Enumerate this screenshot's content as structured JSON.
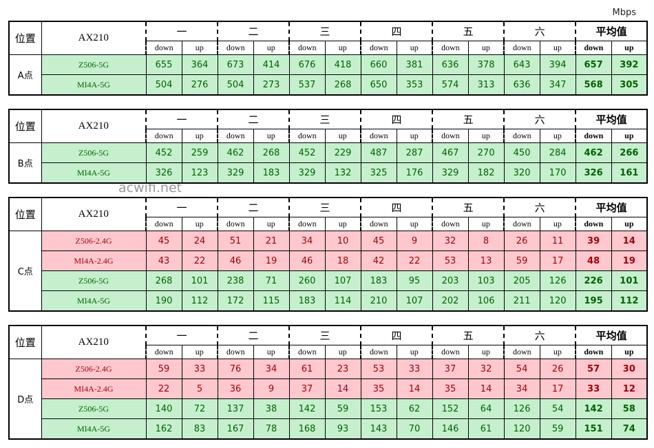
{
  "unit": "Mbps",
  "watermark": "acwifi.net",
  "tables": [
    {
      "location": "A点",
      "corner": "位置",
      "device": "AX210",
      "groups": [
        "一",
        "二",
        "三",
        "四",
        "五",
        "六",
        "平均值"
      ],
      "sub": [
        "down",
        "up"
      ],
      "rows": [
        {
          "name": "Z506-5G",
          "fill": "#c6efce",
          "text_color": "#006100",
          "values": [
            655,
            364,
            673,
            414,
            676,
            418,
            660,
            381,
            636,
            378,
            643,
            394,
            657,
            392
          ]
        },
        {
          "name": "MI4A-5G",
          "fill": "#c6efce",
          "text_color": "#006100",
          "values": [
            504,
            276,
            504,
            273,
            537,
            268,
            650,
            353,
            574,
            313,
            636,
            347,
            568,
            305
          ]
        }
      ]
    },
    {
      "location": "B点",
      "corner": "位置",
      "device": "AX210",
      "groups": [
        "一",
        "二",
        "三",
        "四",
        "五",
        "六",
        "平均值"
      ],
      "sub": [
        "down",
        "up"
      ],
      "rows": [
        {
          "name": "Z506-5G",
          "fill": "#c6efce",
          "text_color": "#006100",
          "values": [
            452,
            259,
            462,
            268,
            452,
            229,
            487,
            287,
            467,
            270,
            450,
            284,
            462,
            266
          ]
        },
        {
          "name": "MI4A-5G",
          "fill": "#c6efce",
          "text_color": "#006100",
          "values": [
            326,
            123,
            329,
            183,
            329,
            132,
            325,
            176,
            329,
            182,
            320,
            170,
            326,
            161
          ]
        }
      ]
    },
    {
      "location": "C点",
      "corner": "位置",
      "device": "AX210",
      "groups": [
        "一",
        "二",
        "三",
        "四",
        "五",
        "六",
        "平均值"
      ],
      "sub": [
        "down",
        "up"
      ],
      "rows": [
        {
          "name": "Z506-2.4G",
          "fill": "#ffc7ce",
          "text_color": "#9c0006",
          "values": [
            45,
            24,
            51,
            21,
            34,
            10,
            45,
            9,
            32,
            8,
            26,
            11,
            39,
            14
          ]
        },
        {
          "name": "MI4A-2.4G",
          "fill": "#ffc7ce",
          "text_color": "#9c0006",
          "values": [
            43,
            22,
            46,
            19,
            46,
            18,
            42,
            22,
            53,
            13,
            59,
            17,
            48,
            19
          ]
        },
        {
          "name": "Z506-5G",
          "fill": "#c6efce",
          "text_color": "#006100",
          "values": [
            268,
            101,
            238,
            71,
            260,
            107,
            183,
            95,
            203,
            103,
            205,
            126,
            226,
            101
          ]
        },
        {
          "name": "MI4A-5G",
          "fill": "#c6efce",
          "text_color": "#006100",
          "values": [
            190,
            112,
            172,
            115,
            183,
            114,
            210,
            107,
            202,
            106,
            211,
            120,
            195,
            112
          ]
        }
      ]
    },
    {
      "location": "D点",
      "corner": "位置",
      "device": "AX210",
      "groups": [
        "一",
        "二",
        "三",
        "四",
        "五",
        "六",
        "平均值"
      ],
      "sub": [
        "down",
        "up"
      ],
      "rows": [
        {
          "name": "Z506-2.4G",
          "fill": "#ffc7ce",
          "text_color": "#9c0006",
          "values": [
            59,
            33,
            76,
            34,
            61,
            23,
            53,
            33,
            37,
            32,
            54,
            26,
            57,
            30
          ]
        },
        {
          "name": "MI4A-2.4G",
          "fill": "#ffc7ce",
          "text_color": "#9c0006",
          "values": [
            22,
            5,
            36,
            9,
            37,
            14,
            35,
            14,
            35,
            14,
            34,
            17,
            33,
            12
          ]
        },
        {
          "name": "Z506-5G",
          "fill": "#c6efce",
          "text_color": "#006100",
          "values": [
            140,
            72,
            137,
            38,
            142,
            59,
            153,
            62,
            152,
            64,
            126,
            54,
            142,
            58
          ]
        },
        {
          "name": "MI4A-5G",
          "fill": "#c6efce",
          "text_color": "#006100",
          "values": [
            162,
            83,
            167,
            78,
            168,
            93,
            143,
            70,
            146,
            61,
            120,
            59,
            151,
            74
          ]
        }
      ]
    }
  ]
}
